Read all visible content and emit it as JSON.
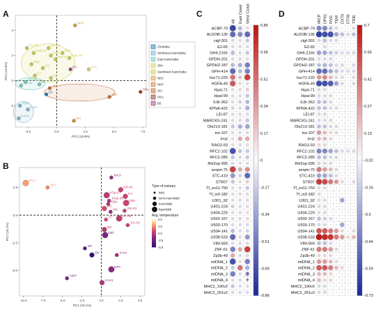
{
  "figure": {
    "panel_labels": [
      "A",
      "B",
      "C",
      "D"
    ]
  },
  "chart_data": [
    {
      "type": "scatter",
      "panel": "A",
      "xlabel": "PC1 (18.9%)",
      "ylabel": "PC2 (14.6%)",
      "xlim": [
        -3.6,
        7.8
      ],
      "ylim": [
        -3.7,
        5.2
      ],
      "xticks": [
        -2.5,
        0.0,
        2.5,
        5.0,
        7.5
      ],
      "xtick_labels": [
        "-2.5",
        "0.0",
        "2.5",
        "5.0",
        "7.5"
      ],
      "yticks": [
        -2,
        0,
        2,
        4
      ],
      "ytick_labels": [
        "-2",
        "0",
        "2",
        "4"
      ],
      "legend": [
        "Chukotka",
        "Northwest Kamchatka",
        "East Kamchatka",
        "Okh",
        "Southwest Kamchatka",
        "NKS",
        "NKP",
        "SKI",
        "SKU",
        "BS"
      ],
      "colors": {
        "Chukotka": "#2a7fb0",
        "Northwest Kamchatka": "#7fb0c8",
        "East Kamchatka": "#74c7b8",
        "Okh": "#d8cc5e",
        "Southwest Kamchatka": "#cccc50",
        "NKS": "#d4a04a",
        "NKP": "#c98a3e",
        "SKI": "#c46c3a",
        "SKU": "#9c3a2e",
        "BS": "#9c4680"
      },
      "points": [
        {
          "label": "NKS",
          "group": "NKS",
          "x": 1.6,
          "y": 4.4
        },
        {
          "label": "KS-05",
          "group": "Southwest Kamchatka",
          "x": -2.6,
          "y": 2.6
        },
        {
          "label": "KSo-07",
          "group": "Southwest Kamchatka",
          "x": -2.0,
          "y": 2.2
        },
        {
          "label": "KB-04",
          "group": "Southwest Kamchatka",
          "x": -0.7,
          "y": 2.6
        },
        {
          "label": "KBp",
          "group": "Southwest Kamchatka",
          "x": -0.5,
          "y": 2.0
        },
        {
          "label": "KB-03",
          "group": "Southwest Kamchatka",
          "x": -0.1,
          "y": 1.7
        },
        {
          "label": "KBo",
          "group": "Southwest Kamchatka",
          "x": 0.5,
          "y": 2.2
        },
        {
          "label": "KOp-07",
          "group": "Southwest Kamchatka",
          "x": 1.1,
          "y": 1.8
        },
        {
          "label": "KBp",
          "group": "Southwest Kamchatka",
          "x": -2.2,
          "y": 1.3
        },
        {
          "label": "KO",
          "group": "Southwest Kamchatka",
          "x": -1.2,
          "y": 1.0
        },
        {
          "label": "KT",
          "group": "Southwest Kamchatka",
          "x": -1.9,
          "y": 0.4
        },
        {
          "label": "KB",
          "group": "Southwest Kamchatka",
          "x": -0.5,
          "y": 0.2
        },
        {
          "label": "KK-04",
          "group": "East Kamchatka",
          "x": -3.1,
          "y": -0.4
        },
        {
          "label": "KK-05",
          "group": "East Kamchatka",
          "x": -2.7,
          "y": -0.1
        },
        {
          "label": "Kv",
          "group": "East Kamchatka",
          "x": -1.5,
          "y": -0.3
        },
        {
          "label": "SKI",
          "group": "SKI",
          "x": -0.6,
          "y": -0.6
        },
        {
          "label": "Ch",
          "group": "Chukotka",
          "x": -0.9,
          "y": -1.1
        },
        {
          "label": "BS",
          "group": "BS",
          "x": 1.2,
          "y": 0.9
        },
        {
          "label": "Okh",
          "group": "Okh",
          "x": 2.8,
          "y": 0.9
        },
        {
          "label": "KPh",
          "group": "Northwest Kamchatka",
          "x": -3.2,
          "y": -2.0
        },
        {
          "label": "KAm",
          "group": "Northwest Kamchatka",
          "x": -2.5,
          "y": -2.3
        },
        {
          "label": "KAmt",
          "group": "Northwest Kamchatka",
          "x": -3.3,
          "y": -3.0
        },
        {
          "label": "SKI",
          "group": "SKI",
          "x": 4.6,
          "y": -1.3
        },
        {
          "label": "SKU",
          "group": "SKU",
          "x": 7.3,
          "y": -0.9
        },
        {
          "label": "KH",
          "group": "NKP",
          "x": 1.5,
          "y": -3.2
        }
      ]
    },
    {
      "type": "scatter",
      "panel": "B",
      "xlabel": "PC1 (19.1%)",
      "ylabel": "PC2 (15.1%)",
      "xlim": [
        -10.5,
        5.6
      ],
      "ylim": [
        -7.3,
        4.3
      ],
      "xticks": [
        -10.0,
        -7.5,
        -5.0,
        -2.5,
        0.0,
        2.5,
        5.0
      ],
      "xtick_labels": [
        "-10.0",
        "-7.5",
        "-5.0",
        "-2.5",
        "0.0",
        "2.5",
        "5.0"
      ],
      "yticks": [
        -5.0,
        -2.5,
        0.0,
        2.5
      ],
      "ytick_labels": [
        "-5.0",
        "-2.5",
        "0.0",
        "2.5"
      ],
      "legend_size_title": "Type of estuary",
      "legend_size": [
        "tidal",
        "semi-macrotidal",
        "macrotidal",
        "hypertidal"
      ],
      "legend_color_title": "Avg. temperature",
      "legend_color_ticks": [
        "5.0",
        "2.5",
        "0.0",
        "-2.5",
        "-5.0"
      ],
      "points": [
        {
          "label": "SKU",
          "x": -9.7,
          "y": 2.9,
          "temp": 3.0
        },
        {
          "label": "SKI",
          "x": -6.9,
          "y": 2.5,
          "temp": 2.5
        },
        {
          "label": "NKS",
          "x": 1.3,
          "y": 3.4,
          "temp": -1.0
        },
        {
          "label": "KB-04",
          "x": 2.5,
          "y": 2.3,
          "temp": 0.5
        },
        {
          "label": "KOp-07",
          "x": 0.7,
          "y": 1.8,
          "temp": 0.0
        },
        {
          "label": "KOp-05",
          "x": 1.0,
          "y": 1.3,
          "temp": -0.5
        },
        {
          "label": "KV",
          "x": 3.1,
          "y": 1.7,
          "temp": 0.5
        },
        {
          "label": "KBo",
          "x": 0.9,
          "y": 1.0,
          "temp": -0.5
        },
        {
          "label": "KBb",
          "x": 3.2,
          "y": 1.1,
          "temp": 0.5
        },
        {
          "label": "Kio",
          "x": 0.4,
          "y": 0.6,
          "temp": 1.0
        },
        {
          "label": "KB-03",
          "x": 3.0,
          "y": 0.4,
          "temp": 0.5
        },
        {
          "label": "KK",
          "x": 1.2,
          "y": 0.3,
          "temp": -1.0
        },
        {
          "label": "KK-05",
          "x": 2.3,
          "y": -0.3,
          "temp": 0.0
        },
        {
          "label": "KK-04",
          "x": 3.4,
          "y": -0.9,
          "temp": 0.5
        },
        {
          "label": "KT",
          "x": 0.6,
          "y": -0.4,
          "temp": 1.0
        },
        {
          "label": "BS",
          "x": 0.4,
          "y": -1.3,
          "temp": 0.0
        },
        {
          "label": "Okh",
          "x": 0.5,
          "y": -1.8,
          "temp": -2.0
        },
        {
          "label": "KP",
          "x": -2.1,
          "y": -3.0,
          "temp": -3.5
        },
        {
          "label": "Ch",
          "x": -1.2,
          "y": -3.6,
          "temp": -5.0
        },
        {
          "label": "KAm",
          "x": 2.0,
          "y": -3.6,
          "temp": -1.0
        },
        {
          "label": "KPh",
          "x": 1.3,
          "y": -4.9,
          "temp": -1.5
        },
        {
          "label": "KAmt",
          "x": 0.1,
          "y": -6.1,
          "temp": -0.5
        },
        {
          "label": "NKP",
          "x": -4.4,
          "y": -5.7,
          "temp": -2.0
        }
      ]
    },
    {
      "type": "heatmap",
      "panel": "C",
      "columns": [
        "All",
        "East Coast",
        "West Coast"
      ],
      "rows": [
        "ACBP-79",
        "ALDOB-135",
        "ctgf-301",
        "E2-65",
        "GHII-2165",
        "GPDH-201",
        "GPDH2-187",
        "GPH-414",
        "hsc71-220",
        "HGFA-49",
        "Hpal-71",
        "Hpal-99",
        "IL8r-362",
        "KPNA-422",
        "LEI-87",
        "MARCKS-241",
        "Ots213-181",
        "ins-107",
        "Prl2",
        "RAG3-93",
        "RFC2-102",
        "RFC2-285",
        "RH2op-395",
        "serpin-75",
        "STC-410",
        "STR07",
        "Tf_ex11-750",
        "Tf_in3-182",
        "U301_92",
        "U401-224",
        "U404-229",
        "U502-167",
        "U503-170",
        "U504-141",
        "U508-533",
        "VIM-569",
        "ZNF-61",
        "Zp3b-49",
        "mtDNA_1",
        "mtDNA_2",
        "mtDNA_3",
        "mtDNA_4",
        "MHC2_190v2",
        "MHC2_251v2"
      ],
      "values": [
        [
          -0.75,
          -0.25,
          0.1
        ],
        [
          -0.6,
          -0.45,
          -0.6
        ],
        [
          -0.1,
          -0.1,
          -0.2
        ],
        [
          -0.1,
          0.1,
          -0.1
        ],
        [
          -0.25,
          -0.1,
          -0.2
        ],
        [
          -0.1,
          -0.1,
          -0.1
        ],
        [
          -0.25,
          -0.3,
          -0.5
        ],
        [
          -0.6,
          -0.25,
          -0.5
        ],
        [
          0.5,
          0.2,
          0.7
        ],
        [
          0.6,
          0.1,
          -0.1
        ],
        [
          0.1,
          0.1,
          0.15
        ],
        [
          -0.1,
          -0.1,
          -0.2
        ],
        [
          -0.1,
          -0.15,
          -0.25
        ],
        [
          -0.15,
          -0.1,
          -0.3
        ],
        [
          -0.1,
          -0.1,
          -0.1
        ],
        [
          -0.1,
          -0.1,
          -0.2
        ],
        [
          -0.2,
          -0.3,
          -0.35
        ],
        [
          0.1,
          -0.1,
          -0.1
        ],
        [
          0.1,
          0.3,
          0.3
        ],
        [
          0.1,
          -0.1,
          0.1
        ],
        [
          -0.7,
          -0.2,
          -0.2
        ],
        [
          -0.2,
          -0.1,
          -0.2
        ],
        [
          -0.1,
          0.1,
          -0.1
        ],
        [
          0.7,
          0.3,
          0.4
        ],
        [
          -0.4,
          -0.15,
          -0.6
        ],
        [
          -0.2,
          0.1,
          0.15
        ],
        [
          -0.1,
          -0.1,
          -0.2
        ],
        [
          0.1,
          0.1,
          0.1
        ],
        [
          -0.1,
          -0.1,
          -0.1
        ],
        [
          -0.15,
          -0.1,
          0.1
        ],
        [
          0.1,
          -0.1,
          0.1
        ],
        [
          -0.1,
          -0.1,
          0.1
        ],
        [
          -0.1,
          -0.1,
          -0.1
        ],
        [
          -0.25,
          -0.1,
          -0.15
        ],
        [
          -0.6,
          -0.1,
          -0.4
        ],
        [
          -0.1,
          -0.1,
          -0.1
        ],
        [
          -0.5,
          0.3,
          0.7
        ],
        [
          0.3,
          -0.1,
          -0.1
        ],
        [
          -0.7,
          0.1,
          -0.5
        ],
        [
          -0.2,
          0.5,
          -0.3
        ],
        [
          -0.5,
          -0.1,
          -0.3
        ],
        [
          0.1,
          -0.1,
          0.1
        ],
        [
          -0.2,
          -0.1,
          0.1
        ],
        [
          -0.1,
          -0.1,
          -0.1
        ]
      ],
      "marks": [
        [
          40,
          2,
          "?"
        ],
        [
          41,
          2,
          "?"
        ]
      ],
      "colorbar_ticks": [
        "0.85",
        "0.68",
        "0.51",
        "0.34",
        "0.17",
        "0",
        "-0.17",
        "-0.34",
        "-0.51",
        "-0.69",
        "-0.86"
      ],
      "vlim": [
        -0.86,
        0.85
      ]
    },
    {
      "type": "heatmap",
      "panel": "D",
      "columns": [
        "tRCP",
        "DP01",
        "RVG",
        "TEM",
        "DXT0",
        "DT00",
        "TIDE"
      ],
      "rows": [
        "ACBP-79",
        "ALDOB-135",
        "ctgf-301",
        "E2-65",
        "GHII-2165",
        "GPDH-201",
        "GPDH2-187",
        "GPH-414",
        "hsc71-220",
        "HGFA-49",
        "Hpal-71",
        "Hpal-99",
        "IL8r-362",
        "KPNA-422",
        "LEI-87",
        "MARCKS-241",
        "Ots213-181",
        "ins-107",
        "Prl2",
        "RAG3-93",
        "RFC2-102",
        "RFC2-285",
        "RH2op-395",
        "serpin-75",
        "STC-410",
        "STR07",
        "Tf_ex11-750",
        "Tf_in3-182",
        "U301_92",
        "U401-224",
        "U404-229",
        "U502-167",
        "U503-170",
        "U504-141",
        "U508-533",
        "VIM-569",
        "ZNF-61",
        "Zp3b-49",
        "mtDNA_1",
        "mtDNA_2",
        "mtDNA_3",
        "mtDNA_4",
        "MHC2_190v2",
        "MHC2_251v2"
      ],
      "values": [
        [
          -0.4,
          -0.4,
          -0.2,
          -0.1,
          0.0,
          0.0,
          -0.1
        ],
        [
          -0.65,
          -0.6,
          -0.6,
          -0.3,
          -0.2,
          -0.1,
          -0.2
        ],
        [
          -0.1,
          -0.2,
          -0.1,
          0.1,
          0.0,
          0.0,
          0.0
        ],
        [
          0.0,
          -0.1,
          0.0,
          0.0,
          0.0,
          0.0,
          0.0
        ],
        [
          -0.3,
          -0.3,
          -0.2,
          -0.15,
          -0.1,
          -0.1,
          -0.1
        ],
        [
          -0.1,
          -0.1,
          -0.1,
          0.0,
          0.0,
          0.0,
          0.0
        ],
        [
          -0.2,
          -0.25,
          -0.2,
          -0.1,
          -0.1,
          0.0,
          -0.1
        ],
        [
          -0.5,
          -0.5,
          -0.3,
          -0.2,
          -0.1,
          -0.1,
          -0.1
        ],
        [
          0.3,
          0.35,
          0.2,
          0.1,
          0.1,
          0.0,
          0.1
        ],
        [
          -0.6,
          -0.6,
          -0.55,
          -0.3,
          -0.1,
          0.0,
          -0.1
        ],
        [
          0.1,
          0.1,
          0.0,
          0.0,
          0.0,
          0.0,
          0.0
        ],
        [
          -0.1,
          -0.1,
          -0.1,
          0.0,
          0.0,
          0.0,
          0.0
        ],
        [
          -0.2,
          -0.2,
          -0.1,
          0.0,
          0.0,
          0.0,
          0.0
        ],
        [
          -0.2,
          -0.2,
          -0.1,
          -0.1,
          0.0,
          0.0,
          0.0
        ],
        [
          -0.1,
          -0.1,
          0.0,
          0.0,
          0.0,
          0.0,
          0.0
        ],
        [
          -0.1,
          -0.1,
          -0.1,
          0.0,
          0.0,
          0.0,
          0.0
        ],
        [
          -0.2,
          -0.2,
          -0.1,
          -0.1,
          0.0,
          0.0,
          0.0
        ],
        [
          0.3,
          0.2,
          0.1,
          0.1,
          0.0,
          0.0,
          0.0
        ],
        [
          0.2,
          0.2,
          0.1,
          0.0,
          0.0,
          0.0,
          0.0
        ],
        [
          0.1,
          0.1,
          0.0,
          0.0,
          0.0,
          0.0,
          0.0
        ],
        [
          -0.4,
          -0.4,
          -0.3,
          -0.2,
          -0.1,
          -0.1,
          -0.1
        ],
        [
          -0.2,
          -0.2,
          -0.1,
          -0.1,
          0.0,
          0.0,
          0.0
        ],
        [
          -0.1,
          -0.1,
          -0.1,
          0.0,
          0.0,
          0.0,
          0.0
        ],
        [
          0.4,
          0.3,
          0.2,
          0.1,
          0.0,
          0.0,
          0.0
        ],
        [
          -0.3,
          -0.3,
          -0.2,
          -0.1,
          0.0,
          0.0,
          0.0
        ],
        [
          0.6,
          0.55,
          0.4,
          0.3,
          0.1,
          0.0,
          0.1
        ],
        [
          -0.1,
          -0.1,
          0.0,
          0.0,
          0.0,
          0.0,
          0.0
        ],
        [
          0.1,
          0.0,
          0.0,
          0.0,
          0.0,
          0.0,
          0.0
        ],
        [
          -0.1,
          -0.1,
          0.0,
          0.0,
          -0.3,
          0.0,
          0.0
        ],
        [
          -0.1,
          -0.1,
          0.0,
          0.0,
          0.0,
          0.0,
          0.0
        ],
        [
          -0.1,
          -0.1,
          0.0,
          0.0,
          0.0,
          0.0,
          0.0
        ],
        [
          -0.2,
          -0.15,
          -0.1,
          0.0,
          0.0,
          0.0,
          0.0
        ],
        [
          -0.1,
          -0.1,
          0.0,
          0.0,
          -0.3,
          0.0,
          0.0
        ],
        [
          0.5,
          0.5,
          0.4,
          0.3,
          0.1,
          0.0,
          0.1
        ],
        [
          0.7,
          0.65,
          0.6,
          0.4,
          0.3,
          0.1,
          0.2
        ],
        [
          -0.2,
          -0.2,
          -0.1,
          0.0,
          0.0,
          0.0,
          0.0
        ],
        [
          0.4,
          0.4,
          0.3,
          0.1,
          0.0,
          0.0,
          0.0
        ],
        [
          0.1,
          0.1,
          0.1,
          0.0,
          0.0,
          0.0,
          0.0
        ],
        [
          0.3,
          0.3,
          0.2,
          0.1,
          0.0,
          0.0,
          0.0
        ],
        [
          0.5,
          0.5,
          0.4,
          0.2,
          0.1,
          0.0,
          0.0
        ],
        [
          0.2,
          0.2,
          0.1,
          0.0,
          0.0,
          0.0,
          0.0
        ],
        [
          0.2,
          0.1,
          0.1,
          0.0,
          0.0,
          0.0,
          0.0
        ],
        [
          -0.1,
          -0.1,
          0.0,
          0.0,
          0.0,
          0.0,
          0.0
        ],
        [
          -0.1,
          -0.1,
          0.0,
          0.0,
          0.0,
          0.0,
          0.0
        ]
      ],
      "colorbar_ticks": [
        "0.7",
        "0.56",
        "0.41",
        "0.27",
        "0.13",
        "-0.02",
        "-0.16",
        "-0.3",
        "-0.44",
        "-0.59",
        "-0.73"
      ],
      "vlim": [
        -0.73,
        0.7
      ]
    }
  ]
}
